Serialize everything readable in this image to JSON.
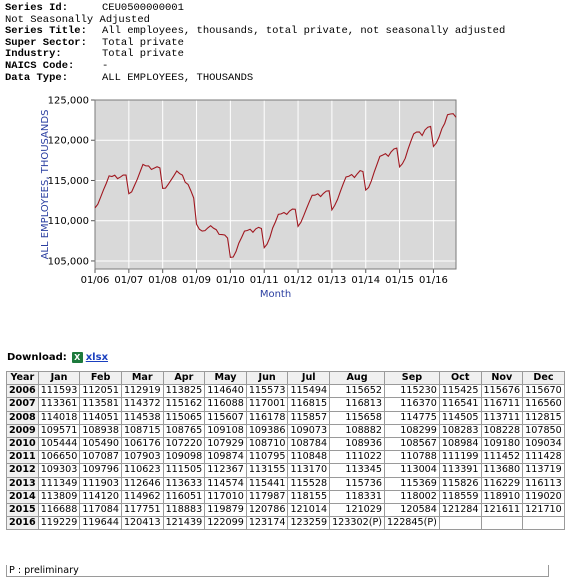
{
  "meta": {
    "series_id_label": "Series Id:",
    "series_id": "CEU0500000001",
    "seasonal": "Not Seasonally Adjusted",
    "series_title_label": "Series Title:",
    "series_title": "All employees, thousands, total private, not seasonally adjusted",
    "super_sector_label": "Super Sector:",
    "super_sector": "Total private",
    "industry_label": "Industry:",
    "industry": "Total private",
    "naics_label": "NAICS Code:",
    "naics": "-",
    "data_type_label": "Data Type:",
    "data_type": "ALL EMPLOYEES, THOUSANDS"
  },
  "download": {
    "label": "Download:",
    "excel_icon": "excel-icon",
    "link": "xlsx"
  },
  "chart_data": {
    "type": "line",
    "xlabel": "Month",
    "ylabel": "ALL EMPLOYEES, THOUSANDS",
    "ylim": [
      104000,
      125000
    ],
    "yticks": [
      105000,
      110000,
      115000,
      120000,
      125000
    ],
    "ytick_labels": [
      "105,000",
      "110,000",
      "115,000",
      "120,000",
      "125,000"
    ],
    "xtick_labels": [
      "01/06",
      "01/07",
      "01/08",
      "01/09",
      "01/10",
      "01/11",
      "01/12",
      "01/13",
      "01/14",
      "01/15",
      "01/16"
    ],
    "grid": true,
    "line_color": "#a01820",
    "plot_background": "#d9d9d9",
    "series": [
      {
        "x_start": "2006-01",
        "values": [
          111593,
          112051,
          112919,
          113825,
          114640,
          115573,
          115494,
          115652,
          115230,
          115425,
          115676,
          115670,
          113361,
          113581,
          114372,
          115162,
          116088,
          117001,
          116815,
          116813,
          116370,
          116541,
          116711,
          116560,
          114018,
          114051,
          114538,
          115065,
          115607,
          116178,
          115857,
          115658,
          114775,
          114505,
          113711,
          112815,
          109571,
          108938,
          108715,
          108765,
          109108,
          109386,
          109073,
          108882,
          108299,
          108283,
          108228,
          107850,
          105444,
          105490,
          106176,
          107220,
          107929,
          108710,
          108784,
          108936,
          108567,
          108984,
          109180,
          109034,
          106650,
          107087,
          107903,
          109098,
          109874,
          110795,
          110848,
          111022,
          110788,
          111199,
          111452,
          111428,
          109303,
          109796,
          110623,
          111505,
          112367,
          113155,
          113170,
          113345,
          113004,
          113391,
          113680,
          113719,
          111349,
          111903,
          112646,
          113633,
          114574,
          115441,
          115528,
          115736,
          115369,
          115826,
          116229,
          116113,
          113809,
          114120,
          114962,
          116051,
          117010,
          117987,
          118155,
          118331,
          118002,
          118559,
          118910,
          119020,
          116688,
          117084,
          117751,
          118883,
          119879,
          120786,
          121014,
          121029,
          120584,
          121284,
          121611,
          121710,
          119229,
          119644,
          120413,
          121439,
          122099,
          123174,
          123259,
          123302,
          122845
        ]
      }
    ]
  },
  "table": {
    "headers": [
      "Year",
      "Jan",
      "Feb",
      "Mar",
      "Apr",
      "May",
      "Jun",
      "Jul",
      "Aug",
      "Sep",
      "Oct",
      "Nov",
      "Dec"
    ],
    "rows": [
      {
        "year": "2006",
        "values": [
          "111593",
          "112051",
          "112919",
          "113825",
          "114640",
          "115573",
          "115494",
          "115652",
          "115230",
          "115425",
          "115676",
          "115670"
        ]
      },
      {
        "year": "2007",
        "values": [
          "113361",
          "113581",
          "114372",
          "115162",
          "116088",
          "117001",
          "116815",
          "116813",
          "116370",
          "116541",
          "116711",
          "116560"
        ]
      },
      {
        "year": "2008",
        "values": [
          "114018",
          "114051",
          "114538",
          "115065",
          "115607",
          "116178",
          "115857",
          "115658",
          "114775",
          "114505",
          "113711",
          "112815"
        ]
      },
      {
        "year": "2009",
        "values": [
          "109571",
          "108938",
          "108715",
          "108765",
          "109108",
          "109386",
          "109073",
          "108882",
          "108299",
          "108283",
          "108228",
          "107850"
        ]
      },
      {
        "year": "2010",
        "values": [
          "105444",
          "105490",
          "106176",
          "107220",
          "107929",
          "108710",
          "108784",
          "108936",
          "108567",
          "108984",
          "109180",
          "109034"
        ]
      },
      {
        "year": "2011",
        "values": [
          "106650",
          "107087",
          "107903",
          "109098",
          "109874",
          "110795",
          "110848",
          "111022",
          "110788",
          "111199",
          "111452",
          "111428"
        ]
      },
      {
        "year": "2012",
        "values": [
          "109303",
          "109796",
          "110623",
          "111505",
          "112367",
          "113155",
          "113170",
          "113345",
          "113004",
          "113391",
          "113680",
          "113719"
        ]
      },
      {
        "year": "2013",
        "values": [
          "111349",
          "111903",
          "112646",
          "113633",
          "114574",
          "115441",
          "115528",
          "115736",
          "115369",
          "115826",
          "116229",
          "116113"
        ]
      },
      {
        "year": "2014",
        "values": [
          "113809",
          "114120",
          "114962",
          "116051",
          "117010",
          "117987",
          "118155",
          "118331",
          "118002",
          "118559",
          "118910",
          "119020"
        ]
      },
      {
        "year": "2015",
        "values": [
          "116688",
          "117084",
          "117751",
          "118883",
          "119879",
          "120786",
          "121014",
          "121029",
          "120584",
          "121284",
          "121611",
          "121710"
        ]
      },
      {
        "year": "2016",
        "values": [
          "119229",
          "119644",
          "120413",
          "121439",
          "122099",
          "123174",
          "123259",
          "123302(P)",
          "122845(P)",
          "",
          "",
          ""
        ]
      }
    ],
    "footnote": "P : preliminary"
  }
}
